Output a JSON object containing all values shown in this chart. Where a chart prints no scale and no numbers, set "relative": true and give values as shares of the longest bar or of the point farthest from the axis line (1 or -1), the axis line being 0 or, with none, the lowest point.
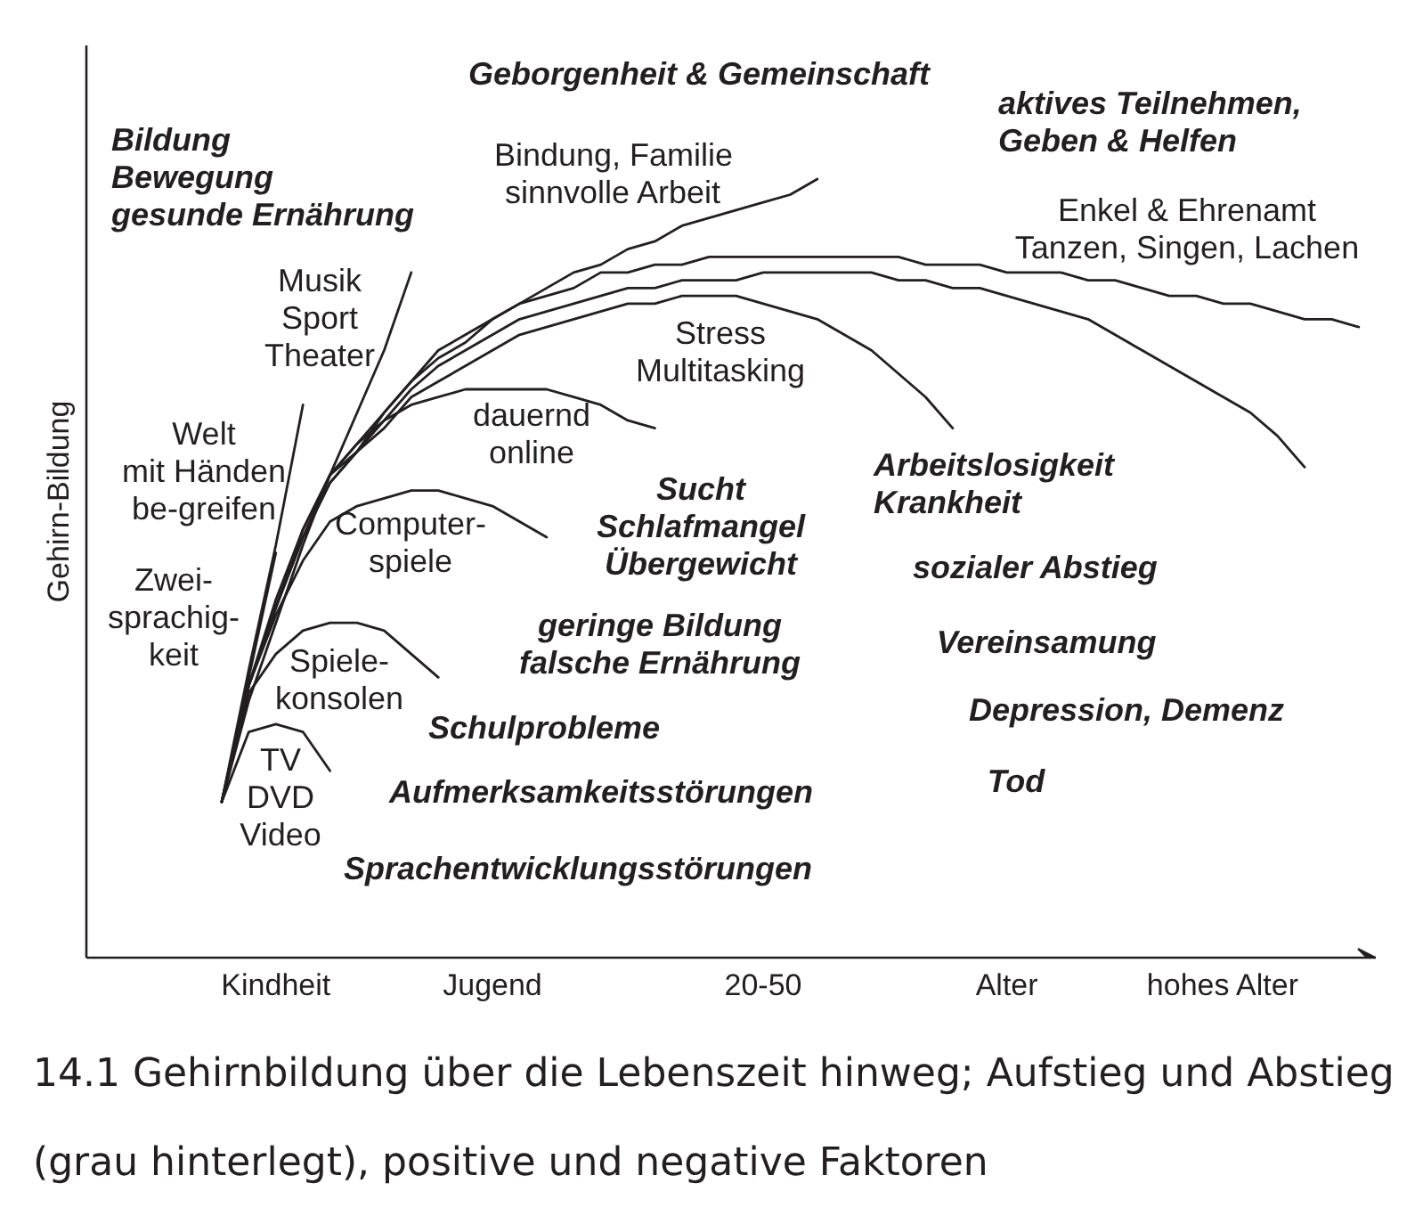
{
  "chart_data": {
    "type": "line",
    "relative": true,
    "ylabel": "Gehirn-Bildung",
    "categories": [
      null,
      null,
      null,
      null,
      null,
      null,
      null,
      "Kindheit",
      null,
      null,
      null,
      null,
      null,
      null,
      null,
      "Jugend",
      null,
      null,
      null,
      null,
      null,
      null,
      null,
      null,
      null,
      "20-50",
      null,
      null,
      null,
      null,
      null,
      null,
      null,
      null,
      "Alter",
      null,
      null,
      null,
      null,
      null,
      null,
      null,
      "hohes Alter",
      null,
      null,
      null,
      null,
      null
    ],
    "series": [
      {
        "color": "#231f20",
        "values": [
          null,
          null,
          null,
          null,
          null,
          0.2,
          0.29,
          0.3,
          0.29,
          0.24,
          null,
          null,
          null,
          null,
          null,
          null,
          null,
          null,
          null,
          null,
          null,
          null,
          null,
          null,
          null,
          null,
          null,
          null,
          null,
          null,
          null,
          null,
          null,
          null,
          null,
          null,
          null,
          null,
          null,
          null,
          null,
          null,
          null,
          null,
          null,
          null,
          null,
          null
        ]
      },
      {
        "color": "#231f20",
        "values": [
          null,
          null,
          null,
          null,
          null,
          0.2,
          0.34,
          0.39,
          0.42,
          0.43,
          0.43,
          0.42,
          0.39,
          0.36,
          null,
          null,
          null,
          null,
          null,
          null,
          null,
          null,
          null,
          null,
          null,
          null,
          null,
          null,
          null,
          null,
          null,
          null,
          null,
          null,
          null,
          null,
          null,
          null,
          null,
          null,
          null,
          null,
          null,
          null,
          null,
          null,
          null,
          null
        ]
      },
      {
        "color": "#231f20",
        "values": [
          null,
          null,
          null,
          null,
          null,
          0.2,
          0.36,
          0.52,
          null,
          null,
          null,
          null,
          null,
          null,
          null,
          null,
          null,
          null,
          null,
          null,
          null,
          null,
          null,
          null,
          null,
          null,
          null,
          null,
          null,
          null,
          null,
          null,
          null,
          null,
          null,
          null,
          null,
          null,
          null,
          null,
          null,
          null,
          null,
          null,
          null,
          null,
          null,
          null
        ]
      },
      {
        "color": "#231f20",
        "values": [
          null,
          null,
          null,
          null,
          null,
          0.2,
          0.35,
          0.44,
          0.51,
          0.56,
          0.58,
          0.59,
          0.6,
          0.6,
          0.59,
          0.58,
          0.56,
          0.54,
          null,
          null,
          null,
          null,
          null,
          null,
          null,
          null,
          null,
          null,
          null,
          null,
          null,
          null,
          null,
          null,
          null,
          null,
          null,
          null,
          null,
          null,
          null,
          null,
          null,
          null,
          null,
          null,
          null,
          null
        ]
      },
      {
        "color": "#231f20",
        "values": [
          null,
          null,
          null,
          null,
          null,
          0.2,
          0.37,
          0.53,
          0.71,
          null,
          null,
          null,
          null,
          null,
          null,
          null,
          null,
          null,
          null,
          null,
          null,
          null,
          null,
          null,
          null,
          null,
          null,
          null,
          null,
          null,
          null,
          null,
          null,
          null,
          null,
          null,
          null,
          null,
          null,
          null,
          null,
          null,
          null,
          null,
          null,
          null,
          null,
          null
        ]
      },
      {
        "color": "#231f20",
        "values": [
          null,
          null,
          null,
          null,
          null,
          0.2,
          0.35,
          0.46,
          0.55,
          0.62,
          0.66,
          0.69,
          0.71,
          0.72,
          0.73,
          0.73,
          0.73,
          0.73,
          0.72,
          0.71,
          0.69,
          0.68,
          null,
          null,
          null,
          null,
          null,
          null,
          null,
          null,
          null,
          null,
          null,
          null,
          null,
          null,
          null,
          null,
          null,
          null,
          null,
          null,
          null,
          null,
          null,
          null,
          null,
          null
        ]
      },
      {
        "color": "#231f20",
        "values": [
          null,
          null,
          null,
          null,
          null,
          0.2,
          0.33,
          0.43,
          0.53,
          0.62,
          0.7,
          0.78,
          0.88,
          null,
          null,
          null,
          null,
          null,
          null,
          null,
          null,
          null,
          null,
          null,
          null,
          null,
          null,
          null,
          null,
          null,
          null,
          null,
          null,
          null,
          null,
          null,
          null,
          null,
          null,
          null,
          null,
          null,
          null,
          null,
          null,
          null,
          null,
          null
        ]
      },
      {
        "color": "#231f20",
        "values": [
          null,
          null,
          null,
          null,
          null,
          0.2,
          0.35,
          0.45,
          0.54,
          0.61,
          0.65,
          0.68,
          0.72,
          0.74,
          0.76,
          0.78,
          0.8,
          0.81,
          0.82,
          0.83,
          0.84,
          0.84,
          0.85,
          0.85,
          0.85,
          0.84,
          0.83,
          0.82,
          0.8,
          0.78,
          0.75,
          0.72,
          0.68,
          null,
          null,
          null,
          null,
          null,
          null,
          null,
          null,
          null,
          null,
          null,
          null,
          null,
          null,
          null
        ]
      },
      {
        "color": "#231f20",
        "values": [
          null,
          null,
          null,
          null,
          null,
          0.2,
          0.35,
          0.45,
          0.54,
          0.61,
          0.65,
          0.69,
          0.73,
          0.76,
          0.78,
          0.8,
          0.82,
          0.83,
          0.84,
          0.85,
          0.86,
          0.86,
          0.87,
          0.87,
          0.87,
          0.88,
          0.88,
          0.88,
          0.88,
          0.88,
          0.87,
          0.87,
          0.86,
          0.86,
          0.85,
          0.84,
          0.83,
          0.82,
          0.8,
          0.78,
          0.76,
          0.74,
          0.72,
          0.7,
          0.67,
          0.63,
          null,
          null
        ]
      },
      {
        "color": "#231f20",
        "values": [
          null,
          null,
          null,
          null,
          null,
          0.2,
          0.35,
          0.45,
          0.54,
          0.62,
          0.65,
          0.7,
          0.74,
          0.78,
          0.8,
          0.82,
          0.84,
          0.85,
          0.86,
          0.88,
          0.88,
          0.89,
          0.89,
          0.9,
          0.9,
          0.9,
          0.9,
          0.9,
          0.9,
          0.9,
          0.9,
          0.89,
          0.89,
          0.89,
          0.88,
          0.88,
          0.88,
          0.87,
          0.87,
          0.86,
          0.85,
          0.85,
          0.84,
          0.84,
          0.83,
          0.82,
          0.82,
          0.81
        ]
      },
      {
        "color": "#231f20",
        "values": [
          null,
          null,
          null,
          null,
          null,
          0.2,
          0.35,
          0.45,
          0.55,
          0.62,
          0.66,
          0.7,
          0.74,
          0.77,
          0.79,
          0.82,
          0.84,
          0.86,
          0.88,
          0.89,
          0.91,
          0.92,
          0.94,
          0.95,
          0.96,
          0.97,
          0.98,
          1.0,
          null,
          null,
          null,
          null,
          null,
          null,
          null,
          null,
          null,
          null,
          null,
          null,
          null,
          null,
          null,
          null,
          null,
          null,
          null,
          null
        ]
      }
    ],
    "annotations": [
      "TV\nDVD\nVideo",
      "Spiele-\nkonsolen",
      "Zwei-\nsprachig-\nkeit",
      "Computer-\nspiele",
      "Welt\nmit Händen\nbe-greifen",
      "dauernd\nonline",
      "Musik\nSport\nTheater",
      "Stress\nMultitasking",
      "Enkel & Ehrenamt\nTanzen, Singen, Lachen",
      "Bindung, Familie\nsinnvolle Arbeit",
      "Bildung\nBewegung\ngesunde Ernährung",
      "Geborgenheit & Gemeinschaft",
      "aktives Teilnehmen,\nGeben & Helfen",
      "Sucht\nSchlafmangel\nÜbergewicht",
      "geringe Bildung\nfalsche Ernährung",
      "Schulprobleme",
      "Aufmerksamkeitsstörungen",
      "Sprachentwicklungsstörungen",
      "Arbeitslosigkeit\nKrankheit",
      "sozialer Abstieg",
      "Vereinsamung",
      "Depression, Demenz",
      "Tod",
      "14.1 Gehirnbildung über die Lebenszeit hinweg; Aufstieg und Abstieg (grau hinterlegt), positive und negative Faktoren"
    ]
  }
}
